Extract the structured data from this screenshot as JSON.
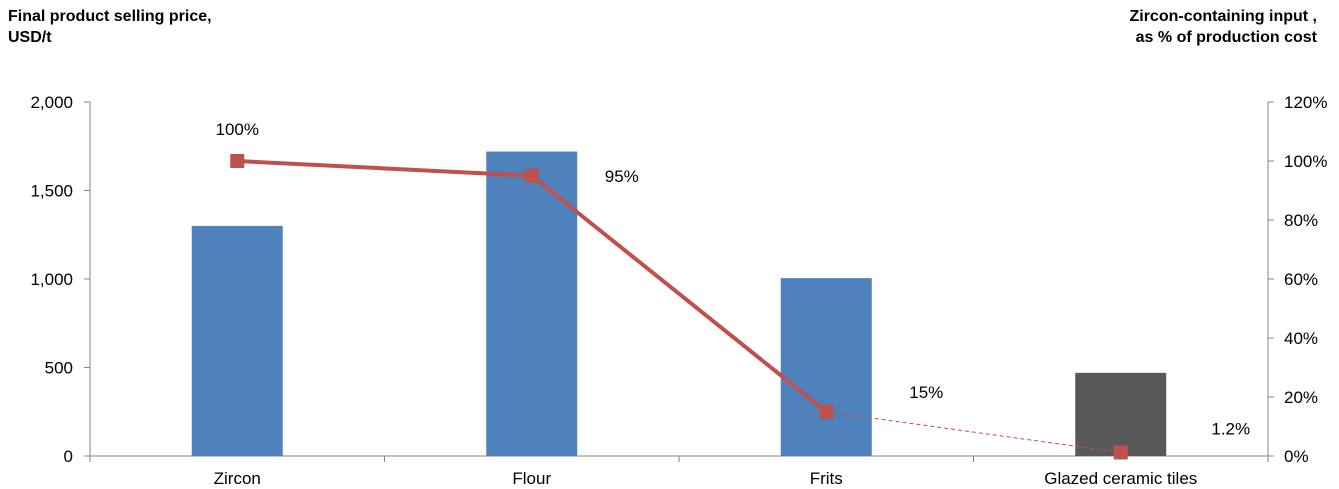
{
  "chart_data": {
    "type": "bar+line",
    "categories": [
      "Zircon",
      "Flour",
      "Frits",
      "Glazed ceramic tiles"
    ],
    "bar_series": {
      "values": [
        1300,
        1720,
        1005,
        470
      ],
      "colors": [
        "#4f81bd",
        "#4f81bd",
        "#4f81bd",
        "#595959"
      ]
    },
    "line_series": {
      "values": [
        100,
        95,
        15,
        1.2
      ],
      "labels": [
        "100%",
        "95%",
        "15%",
        "1.2%"
      ],
      "color": "#c0504d",
      "last_segment_dashed": true
    },
    "y_left": {
      "title_line1": "Final product selling price,",
      "title_line2": "USD/t",
      "min": 0,
      "max": 2000,
      "step": 500,
      "tick_labels": [
        "0",
        "500",
        "1,000",
        "1,500",
        "2,000"
      ]
    },
    "y_right": {
      "title_line1": "Zircon-containing input ,",
      "title_line2": "as % of production cost",
      "min": 0,
      "max": 120,
      "step": 20,
      "tick_labels": [
        "0%",
        "20%",
        "40%",
        "60%",
        "80%",
        "100%",
        "120%"
      ]
    },
    "grid": false,
    "legend": "none"
  }
}
